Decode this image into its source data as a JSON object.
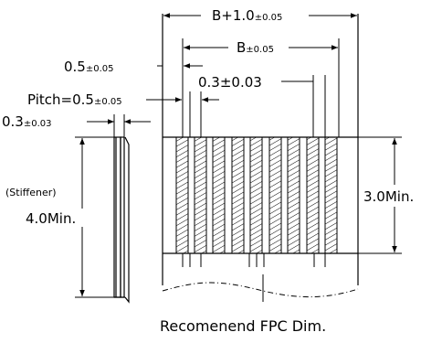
{
  "drawing": {
    "title": "Recomenend FPC Dim.",
    "dimensions": {
      "overall_width": {
        "main": "B+1.0",
        "tol": "±0.05"
      },
      "b_width": {
        "main": "B",
        "tol": "±0.05"
      },
      "edge_offset": {
        "main": "0.5",
        "tol": "±0.05"
      },
      "trace_width": {
        "main": "0.3±0.03"
      },
      "pitch": {
        "main": "Pitch=0.5",
        "tol": "±0.05"
      },
      "side_thickness": {
        "main": "0.3",
        "tol": "±0.03"
      },
      "stiffener_label": "(Stiffener)",
      "stiffener_length": "4.0Min.",
      "contact_length": "3.0Min."
    }
  }
}
